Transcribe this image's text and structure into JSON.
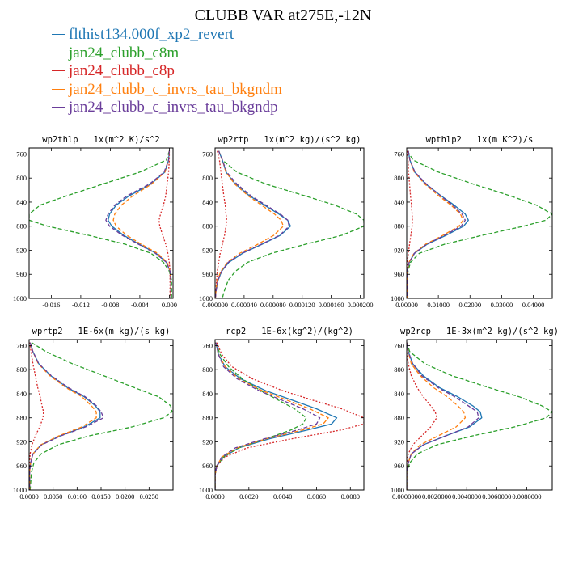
{
  "title": "CLUBB VAR at275E,-12N",
  "legend": [
    {
      "name": "flthist134.000f_xp2_revert",
      "color": "#1f77b4"
    },
    {
      "name": "jan24_clubb_c8m",
      "color": "#2ca02c"
    },
    {
      "name": "jan24_clubb_c8p",
      "color": "#d62728"
    },
    {
      "name": "jan24_clubb_c_invrs_tau_bkgndm",
      "color": "#ff7f0e"
    },
    {
      "name": "jan24_clubb_c_invrs_tau_bkgndp",
      "color": "#6a3d9a"
    }
  ],
  "chart_data": [
    {
      "type": "line",
      "title": "wp2thlp   1x(m^2 K)/s^2",
      "xlim": [
        -0.019,
        0.0005
      ],
      "xticks": [
        -0.016,
        -0.012,
        -0.008,
        -0.004,
        0.0
      ],
      "xtick_labels": [
        "-0.016",
        "-0.012",
        "-0.008",
        "-0.004",
        "0.000"
      ],
      "ylim": [
        1000,
        750
      ],
      "yticks": [
        760,
        800,
        840,
        880,
        920,
        960,
        1000
      ],
      "ytick_labels": [
        "760",
        "800",
        "840",
        "880",
        "920",
        "960",
        "1000"
      ],
      "y": [
        755,
        770,
        790,
        810,
        830,
        845,
        860,
        870,
        880,
        895,
        910,
        925,
        940,
        955,
        970,
        990,
        1000
      ],
      "series": [
        {
          "color": "#1f77b4",
          "style": "solid",
          "values": [
            0,
            -0.0001,
            -0.0006,
            -0.0025,
            -0.0055,
            -0.0072,
            -0.0081,
            -0.0083,
            -0.0078,
            -0.0062,
            -0.0041,
            -0.0018,
            -0.0004,
            0.0001,
            0.0002,
            0.0002,
            0.0002
          ]
        },
        {
          "color": "#2ca02c",
          "style": "dashed",
          "values": [
            0,
            -0.0004,
            -0.004,
            -0.009,
            -0.014,
            -0.0175,
            -0.019,
            -0.019,
            -0.0165,
            -0.011,
            -0.006,
            -0.0025,
            -0.0008,
            0,
            0.0003,
            0.0003,
            0.0003
          ]
        },
        {
          "color": "#d62728",
          "style": "dotted",
          "values": [
            0,
            0,
            -0.0001,
            -0.0003,
            -0.0005,
            -0.0008,
            -0.0012,
            -0.0014,
            -0.0013,
            -0.0009,
            -0.0005,
            -0.0002,
            0,
            0.0001,
            0.0001,
            0.0001,
            0.0001
          ]
        },
        {
          "color": "#ff7f0e",
          "style": "dashed",
          "values": [
            0,
            -0.0001,
            -0.0006,
            -0.0024,
            -0.005,
            -0.0065,
            -0.0074,
            -0.0076,
            -0.0072,
            -0.0058,
            -0.0038,
            -0.0016,
            -0.0003,
            0.0001,
            0.0002,
            0.0002,
            0.0002
          ]
        },
        {
          "color": "#6a3d9a",
          "style": "dashed",
          "values": [
            0,
            -0.0001,
            -0.0007,
            -0.0027,
            -0.0058,
            -0.0074,
            -0.0083,
            -0.0086,
            -0.0081,
            -0.0064,
            -0.0042,
            -0.0019,
            -0.0004,
            0.0001,
            0.0002,
            0.0002,
            0.0002
          ]
        }
      ]
    },
    {
      "type": "line",
      "title": "wp2rtp   1x(m^2 kg)/(s^2 kg)",
      "xlim": [
        0.0,
        0.000205
      ],
      "xticks": [
        0.0,
        4e-05,
        8e-05,
        0.00012,
        0.00016,
        0.0002
      ],
      "xtick_labels": [
        "0.000000",
        "0.000040",
        "0.000080",
        "0.000120",
        "0.000160",
        "0.000200"
      ],
      "ylim": [
        1000,
        750
      ],
      "yticks": [
        760,
        800,
        840,
        880,
        920,
        960,
        1000
      ],
      "ytick_labels": [
        "760",
        "800",
        "840",
        "880",
        "920",
        "960",
        "1000"
      ],
      "y": [
        755,
        770,
        790,
        810,
        830,
        845,
        860,
        870,
        880,
        895,
        910,
        925,
        940,
        955,
        970,
        990,
        1000
      ],
      "series": [
        {
          "color": "#1f77b4",
          "style": "solid",
          "values": [
            5e-06,
            1e-05,
            1.5e-05,
            2.8e-05,
            4.8e-05,
            6.8e-05,
            8.8e-05,
            0.0001,
            0.000104,
            9e-05,
            6.5e-05,
            3.8e-05,
            1.9e-05,
            9e-06,
            4e-06,
            1e-06,
            5e-07
          ]
        },
        {
          "color": "#2ca02c",
          "style": "dashed",
          "values": [
            5e-06,
            1e-05,
            3e-05,
            7e-05,
            0.000125,
            0.000165,
            0.000195,
            0.000205,
            0.000205,
            0.000175,
            0.000125,
            7.8e-05,
            4.5e-05,
            2.8e-05,
            1.8e-05,
            1.2e-05,
            1e-05
          ]
        },
        {
          "color": "#d62728",
          "style": "dotted",
          "values": [
            3e-06,
            6e-06,
            8e-06,
            1e-05,
            1.2e-05,
            1.4e-05,
            1.5e-05,
            1.6e-05,
            1.5e-05,
            1.3e-05,
            1e-05,
            7e-06,
            5e-06,
            3e-06,
            2e-06,
            1e-06,
            5e-07
          ]
        },
        {
          "color": "#ff7f0e",
          "style": "dashed",
          "values": [
            5e-06,
            1e-05,
            1.5e-05,
            2.7e-05,
            4.6e-05,
            6.4e-05,
            8.2e-05,
            9.1e-05,
            9.4e-05,
            8.1e-05,
            5.9e-05,
            3.4e-05,
            1.7e-05,
            8e-06,
            3e-06,
            1e-06,
            5e-07
          ]
        },
        {
          "color": "#6a3d9a",
          "style": "dashed",
          "values": [
            5e-06,
            1e-05,
            1.6e-05,
            3e-05,
            5e-05,
            7e-05,
            9e-05,
            0.0001,
            0.000102,
            8.9e-05,
            6.4e-05,
            3.7e-05,
            1.8e-05,
            9e-06,
            4e-06,
            1e-06,
            5e-07
          ]
        }
      ]
    },
    {
      "type": "line",
      "title": "wpthlp2   1x(m K^2)/s",
      "xlim": [
        0.0,
        0.046
      ],
      "xticks": [
        0.0,
        0.01,
        0.02,
        0.03,
        0.04
      ],
      "xtick_labels": [
        "0.00000",
        "0.01000",
        "0.02000",
        "0.03000",
        "0.04000"
      ],
      "ylim": [
        1000,
        750
      ],
      "yticks": [
        760,
        800,
        840,
        880,
        920,
        960,
        1000
      ],
      "ytick_labels": [
        "760",
        "800",
        "840",
        "880",
        "920",
        "960",
        "1000"
      ],
      "y": [
        755,
        770,
        790,
        810,
        830,
        845,
        860,
        870,
        880,
        895,
        910,
        925,
        940,
        955,
        970,
        990,
        1000
      ],
      "series": [
        {
          "color": "#1f77b4",
          "style": "solid",
          "values": [
            0.0005,
            0.001,
            0.0025,
            0.006,
            0.011,
            0.015,
            0.0185,
            0.0195,
            0.018,
            0.0125,
            0.0065,
            0.0025,
            0.0008,
            0.0002,
            0.0001,
            0.0001,
            0.0001
          ]
        },
        {
          "color": "#2ca02c",
          "style": "dashed",
          "values": [
            0.0002,
            0.002,
            0.01,
            0.021,
            0.033,
            0.041,
            0.046,
            0.044,
            0.037,
            0.024,
            0.012,
            0.004,
            0.0012,
            0.0004,
            0.0002,
            0.0001,
            0.0001
          ]
        },
        {
          "color": "#d62728",
          "style": "dotted",
          "values": [
            0.0002,
            0.0004,
            0.0006,
            0.0009,
            0.0012,
            0.0015,
            0.0017,
            0.0018,
            0.0017,
            0.0013,
            0.0009,
            0.0005,
            0.0002,
            0.0001,
            0.0001,
            0.0001,
            0.0001
          ]
        },
        {
          "color": "#ff7f0e",
          "style": "dashed",
          "values": [
            0.0005,
            0.001,
            0.0024,
            0.0057,
            0.0102,
            0.014,
            0.017,
            0.0178,
            0.0165,
            0.0115,
            0.006,
            0.0023,
            0.0007,
            0.0002,
            0.0001,
            0.0001,
            0.0001
          ]
        },
        {
          "color": "#6a3d9a",
          "style": "dashed",
          "values": [
            0.0005,
            0.001,
            0.0026,
            0.0062,
            0.0108,
            0.0145,
            0.0175,
            0.0185,
            0.0172,
            0.012,
            0.0063,
            0.0024,
            0.0008,
            0.0002,
            0.0001,
            0.0001,
            0.0001
          ]
        }
      ]
    },
    {
      "type": "line",
      "title": "wprtp2   1E-6x(m kg)/(s kg)",
      "xlim": [
        0.0,
        0.03
      ],
      "xticks": [
        0.0,
        0.005,
        0.01,
        0.015,
        0.02,
        0.025
      ],
      "xtick_labels": [
        "0.0000",
        "0.0050",
        "0.0100",
        "0.0150",
        "0.0200",
        "0.0250"
      ],
      "ylim": [
        1000,
        750
      ],
      "yticks": [
        760,
        800,
        840,
        880,
        920,
        960,
        1000
      ],
      "ytick_labels": [
        "760",
        "800",
        "840",
        "880",
        "920",
        "960",
        "1000"
      ],
      "y": [
        755,
        770,
        790,
        810,
        830,
        845,
        860,
        870,
        880,
        895,
        910,
        925,
        940,
        955,
        970,
        990,
        1000
      ],
      "series": [
        {
          "color": "#1f77b4",
          "style": "solid",
          "values": [
            0.0002,
            0.0008,
            0.002,
            0.0045,
            0.008,
            0.0115,
            0.0138,
            0.0148,
            0.0148,
            0.0115,
            0.0065,
            0.0025,
            0.0008,
            0.0003,
            0.0001,
            0.0001,
            0.0001
          ]
        },
        {
          "color": "#2ca02c",
          "style": "dashed",
          "values": [
            0.0005,
            0.0035,
            0.009,
            0.0155,
            0.022,
            0.027,
            0.0295,
            0.0298,
            0.028,
            0.0215,
            0.0125,
            0.006,
            0.0025,
            0.001,
            0.0005,
            0.0003,
            0.0002
          ]
        },
        {
          "color": "#d62728",
          "style": "dotted",
          "values": [
            0.0001,
            0.0004,
            0.0008,
            0.0013,
            0.0018,
            0.0023,
            0.0027,
            0.003,
            0.0029,
            0.0022,
            0.0013,
            0.0006,
            0.0002,
            0.0001,
            0.0001,
            0.0001,
            0.0001
          ]
        },
        {
          "color": "#ff7f0e",
          "style": "dashed",
          "values": [
            0.0002,
            0.0008,
            0.0019,
            0.0043,
            0.0077,
            0.011,
            0.013,
            0.014,
            0.014,
            0.011,
            0.0062,
            0.0024,
            0.0008,
            0.0003,
            0.0001,
            0.0001,
            0.0001
          ]
        },
        {
          "color": "#6a3d9a",
          "style": "dashed",
          "values": [
            0.0002,
            0.0008,
            0.002,
            0.0046,
            0.0082,
            0.0117,
            0.014,
            0.015,
            0.0155,
            0.0118,
            0.0066,
            0.0026,
            0.0008,
            0.0003,
            0.0001,
            0.0001,
            0.0001
          ]
        }
      ]
    },
    {
      "type": "line",
      "title": "rcp2   1E-6x(kg^2)/(kg^2)",
      "xlim": [
        0.0,
        0.0088
      ],
      "xticks": [
        0.0,
        0.002,
        0.004,
        0.006,
        0.008
      ],
      "xtick_labels": [
        "0.0000",
        "0.0020",
        "0.0040",
        "0.0060",
        "0.0080"
      ],
      "ylim": [
        1000,
        750
      ],
      "yticks": [
        760,
        800,
        840,
        880,
        920,
        960,
        1000
      ],
      "ytick_labels": [
        "760",
        "800",
        "840",
        "880",
        "920",
        "960",
        "1000"
      ],
      "y": [
        755,
        775,
        795,
        815,
        835,
        850,
        865,
        880,
        890,
        900,
        915,
        930,
        945,
        960,
        975,
        1000
      ],
      "series": [
        {
          "color": "#1f77b4",
          "style": "solid",
          "values": [
            5e-05,
            0.0002,
            0.0006,
            0.0015,
            0.003,
            0.0045,
            0.006,
            0.0072,
            0.0069,
            0.0055,
            0.0032,
            0.0014,
            0.0005,
            0.0001,
            0,
            0
          ]
        },
        {
          "color": "#2ca02c",
          "style": "dashed",
          "values": [
            5e-05,
            0.0003,
            0.0008,
            0.0016,
            0.0027,
            0.0037,
            0.0047,
            0.0054,
            0.0052,
            0.0045,
            0.003,
            0.0014,
            0.0005,
            0.0001,
            0,
            0
          ]
        },
        {
          "color": "#d62728",
          "style": "dotted",
          "values": [
            0.0001,
            0.0004,
            0.001,
            0.0022,
            0.004,
            0.0057,
            0.0075,
            0.0088,
            0.0088,
            0.0075,
            0.0045,
            0.0019,
            0.0006,
            0.0001,
            0,
            0
          ]
        },
        {
          "color": "#ff7f0e",
          "style": "dashed",
          "values": [
            5e-05,
            0.0002,
            0.0006,
            0.0014,
            0.0028,
            0.0042,
            0.0056,
            0.0067,
            0.0064,
            0.0052,
            0.003,
            0.0013,
            0.0004,
            0.0001,
            0,
            0
          ]
        },
        {
          "color": "#6a3d9a",
          "style": "dashed",
          "values": [
            5e-05,
            0.0002,
            0.0005,
            0.0013,
            0.0026,
            0.0039,
            0.0052,
            0.0062,
            0.006,
            0.0049,
            0.0029,
            0.0012,
            0.0004,
            0.0001,
            0,
            0
          ]
        }
      ]
    },
    {
      "type": "line",
      "title": "wp2rcp   1E-3x(m^2 kg)/(s^2 kg)",
      "xlim": [
        0.0,
        0.0097
      ],
      "xticks": [
        0.0,
        0.002,
        0.004,
        0.006,
        0.008
      ],
      "xtick_labels": [
        "0.0000000",
        "0.0020000",
        "0.0040000",
        "0.0060000",
        "0.0080000"
      ],
      "ylim": [
        1000,
        750
      ],
      "yticks": [
        760,
        800,
        840,
        880,
        920,
        960,
        1000
      ],
      "ytick_labels": [
        "760",
        "800",
        "840",
        "880",
        "920",
        "960",
        "1000"
      ],
      "y": [
        755,
        770,
        790,
        810,
        830,
        845,
        860,
        870,
        880,
        895,
        910,
        925,
        940,
        955,
        970,
        990,
        1000
      ],
      "series": [
        {
          "color": "#1f77b4",
          "style": "solid",
          "values": [
            0,
            0.0001,
            0.0004,
            0.0011,
            0.0022,
            0.0034,
            0.0044,
            0.0049,
            0.005,
            0.0042,
            0.0026,
            0.0011,
            0.0003,
            0.0001,
            0,
            0,
            0
          ]
        },
        {
          "color": "#2ca02c",
          "style": "dashed",
          "values": [
            0,
            0.0002,
            0.0012,
            0.003,
            0.0055,
            0.0075,
            0.009,
            0.0097,
            0.0093,
            0.0072,
            0.0044,
            0.002,
            0.0007,
            0.0002,
            0,
            0,
            0
          ]
        },
        {
          "color": "#d62728",
          "style": "dotted",
          "values": [
            0,
            0,
            0.0001,
            0.0003,
            0.0007,
            0.0011,
            0.0016,
            0.0019,
            0.002,
            0.0016,
            0.001,
            0.0004,
            0.0001,
            0,
            0,
            0,
            0
          ]
        },
        {
          "color": "#ff7f0e",
          "style": "dashed",
          "values": [
            0,
            0.0001,
            0.0003,
            0.0009,
            0.0018,
            0.0027,
            0.0034,
            0.0038,
            0.0039,
            0.0033,
            0.0021,
            0.0009,
            0.0003,
            0.0001,
            0,
            0,
            0
          ]
        },
        {
          "color": "#6a3d9a",
          "style": "dashed",
          "values": [
            0,
            0.0001,
            0.0004,
            0.001,
            0.0021,
            0.0032,
            0.0041,
            0.0047,
            0.0048,
            0.0041,
            0.0026,
            0.0011,
            0.0003,
            0.0001,
            0,
            0,
            0
          ]
        }
      ]
    }
  ]
}
